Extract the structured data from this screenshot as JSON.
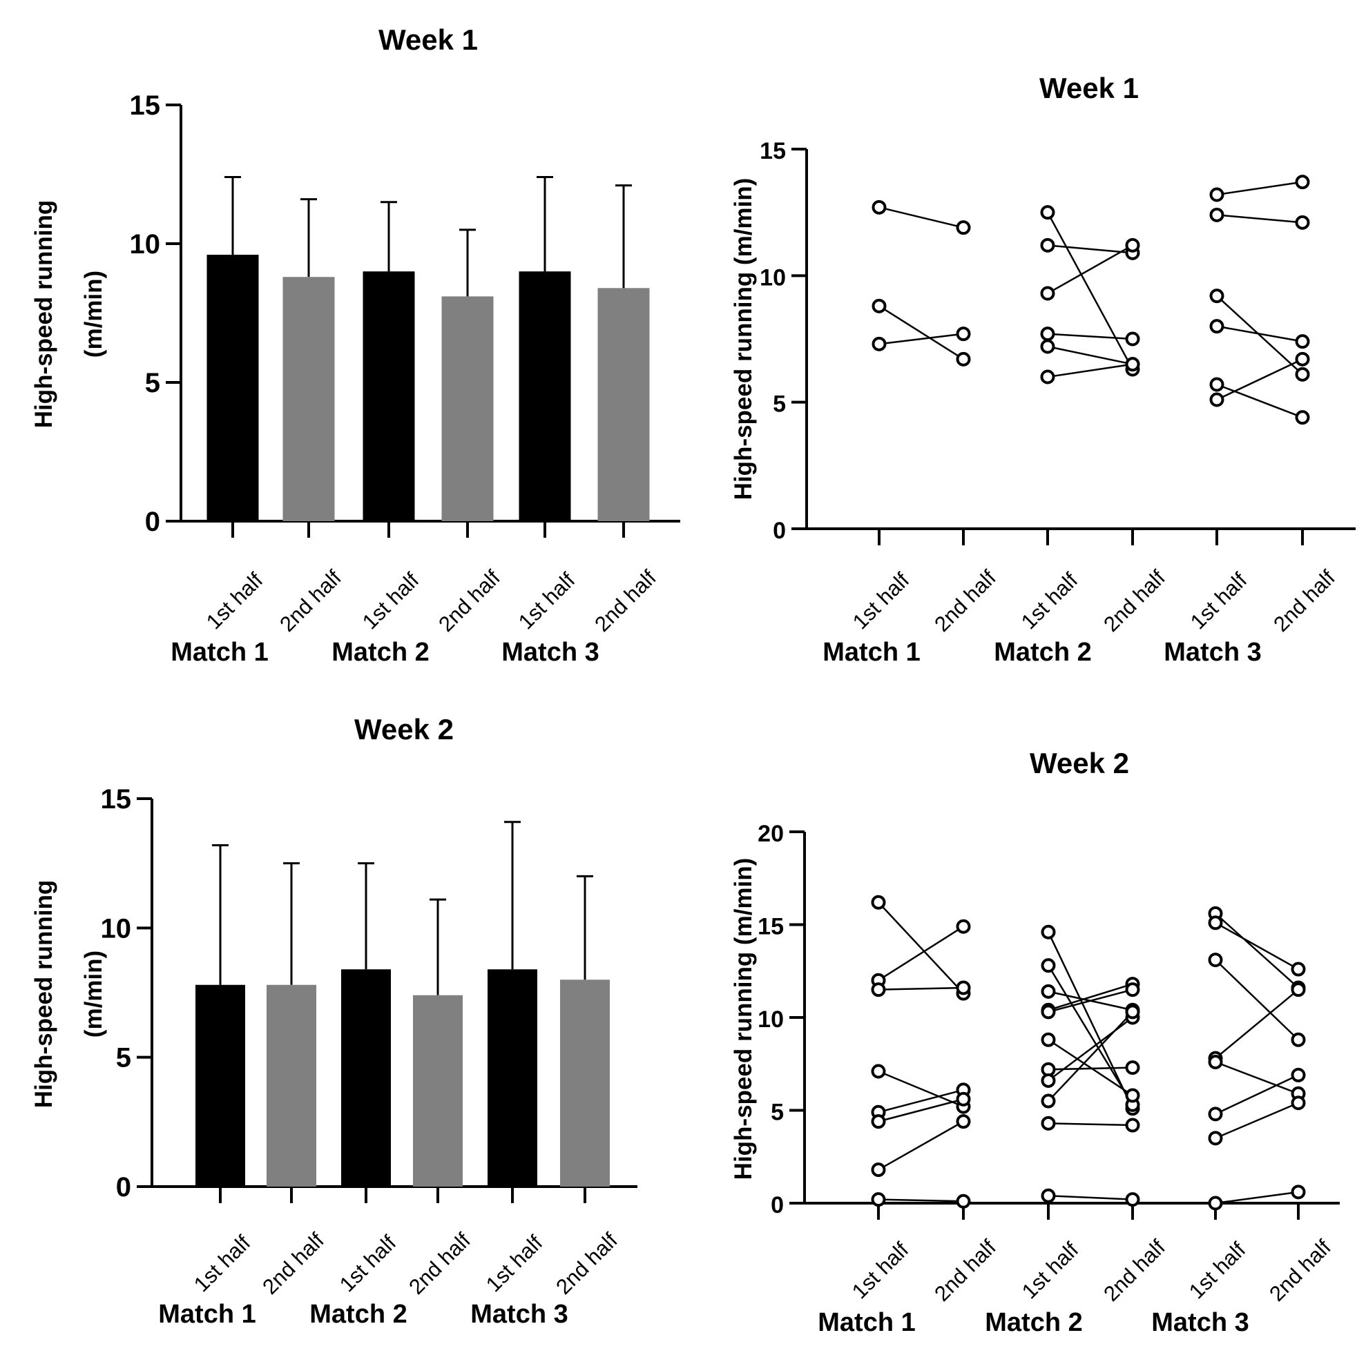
{
  "chart_data": [
    {
      "id": "week1-bar",
      "type": "bar",
      "title": "Week 1",
      "ylabel": [
        "High-speed running",
        "(m/min)"
      ],
      "yticks": [
        0,
        5,
        10,
        15
      ],
      "ylim": [
        0,
        15
      ],
      "categories": [
        "1st half",
        "2nd half",
        "1st half",
        "2nd half",
        "1st half",
        "2nd half"
      ],
      "groups": [
        "Match 1",
        "Match 2",
        "Match 3"
      ],
      "values": [
        9.6,
        8.8,
        9.0,
        8.1,
        9.0,
        8.4
      ],
      "error": [
        2.8,
        2.8,
        2.5,
        2.4,
        3.4,
        3.7
      ],
      "colors": [
        "#000000",
        "#808080",
        "#000000",
        "#808080",
        "#000000",
        "#808080"
      ]
    },
    {
      "id": "week1-scatter",
      "type": "scatter",
      "title": "Week 1",
      "ylabel": "High-speed running (m/min)",
      "yticks": [
        0,
        5,
        10,
        15
      ],
      "ylim": [
        0,
        15
      ],
      "categories": [
        "1st half",
        "2nd half",
        "1st half",
        "2nd half",
        "1st half",
        "2nd half"
      ],
      "groups": [
        "Match 1",
        "Match 2",
        "Match 3"
      ],
      "pairs": [
        [
          [
            12.7,
            11.9
          ],
          [
            8.8,
            6.7
          ],
          [
            7.3,
            7.7
          ]
        ],
        [
          [
            12.5,
            6.3
          ],
          [
            11.2,
            10.9
          ],
          [
            9.3,
            11.2
          ],
          [
            7.7,
            7.5
          ],
          [
            7.2,
            6.5
          ],
          [
            6.0,
            6.5
          ]
        ],
        [
          [
            13.2,
            13.7
          ],
          [
            12.4,
            12.1
          ],
          [
            9.2,
            6.1
          ],
          [
            8.0,
            7.4
          ],
          [
            5.7,
            4.4
          ],
          [
            5.1,
            6.7
          ]
        ]
      ]
    },
    {
      "id": "week2-bar",
      "type": "bar",
      "title": "Week 2",
      "ylabel": [
        "High-speed running",
        "(m/min)"
      ],
      "yticks": [
        0,
        5,
        10,
        15
      ],
      "ylim": [
        0,
        15
      ],
      "categories": [
        "1st half",
        "2nd half",
        "1st half",
        "2nd half",
        "1st half",
        "2nd half"
      ],
      "groups": [
        "Match 1",
        "Match 2",
        "Match 3"
      ],
      "values": [
        7.8,
        7.8,
        8.4,
        7.4,
        8.4,
        8.0
      ],
      "error": [
        5.4,
        4.7,
        4.1,
        3.7,
        5.7,
        4.0
      ],
      "colors": [
        "#000000",
        "#808080",
        "#000000",
        "#808080",
        "#000000",
        "#808080"
      ]
    },
    {
      "id": "week2-scatter",
      "type": "scatter",
      "title": "Week 2",
      "ylabel": "High-speed running (m/min)",
      "yticks": [
        0,
        5,
        10,
        15,
        20
      ],
      "ylim": [
        0,
        20
      ],
      "categories": [
        "1st half",
        "2nd half",
        "1st half",
        "2nd half",
        "1st half",
        "2nd half"
      ],
      "groups": [
        "Match 1",
        "Match 2",
        "Match 3"
      ],
      "pairs": [
        [
          [
            16.2,
            11.3
          ],
          [
            12.0,
            14.9
          ],
          [
            11.5,
            11.6
          ],
          [
            7.1,
            5.2
          ],
          [
            4.9,
            6.1
          ],
          [
            4.4,
            5.6
          ],
          [
            1.8,
            4.4
          ],
          [
            0.2,
            0.1
          ]
        ],
        [
          [
            14.6,
            5.1
          ],
          [
            12.8,
            5.3
          ],
          [
            11.4,
            10.4
          ],
          [
            10.4,
            11.8
          ],
          [
            10.3,
            11.5
          ],
          [
            8.8,
            5.8
          ],
          [
            7.2,
            7.3
          ],
          [
            6.6,
            10.0
          ],
          [
            5.5,
            10.3
          ],
          [
            4.3,
            4.2
          ],
          [
            0.4,
            0.2
          ]
        ],
        [
          [
            15.6,
            11.6
          ],
          [
            15.1,
            12.6
          ],
          [
            13.1,
            8.8
          ],
          [
            7.8,
            11.5
          ],
          [
            7.6,
            5.9
          ],
          [
            4.8,
            6.9
          ],
          [
            3.5,
            5.4
          ],
          [
            0.0,
            0.6
          ]
        ]
      ]
    }
  ]
}
